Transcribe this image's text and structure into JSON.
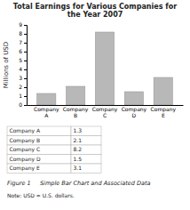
{
  "chart_data": {
    "type": "bar",
    "title": "Total Earnings for Various Companies for the Year 2007",
    "y_label": "Millions of USD",
    "categories": [
      "Company A",
      "Company B",
      "Company C",
      "Company D",
      "Company E"
    ],
    "values": [
      1.3,
      2.1,
      8.2,
      1.5,
      3.1
    ],
    "color": "#b8b8b8",
    "ylim": [
      0,
      9
    ],
    "yticks": [
      0,
      1,
      2,
      3,
      4,
      5,
      6,
      7,
      8,
      9
    ],
    "grid": false,
    "table": [
      [
        "Company A",
        "1.3"
      ],
      [
        "Company B",
        "2.1"
      ],
      [
        "Company C",
        "8.2"
      ],
      [
        "Company D",
        "1.5"
      ],
      [
        "Company E",
        "3.1"
      ]
    ],
    "annotations": [
      "Figure 1     Simple Bar Chart and Associated Data",
      "Note: USD = U.S. dollars."
    ]
  }
}
